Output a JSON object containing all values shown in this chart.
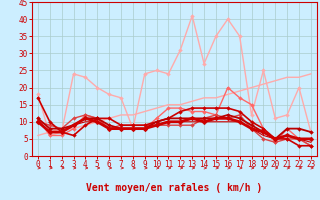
{
  "title": "",
  "xlabel": "Vent moyen/en rafales ( km/h )",
  "xlim": [
    -0.5,
    23.5
  ],
  "ylim": [
    0,
    45
  ],
  "yticks": [
    0,
    5,
    10,
    15,
    20,
    25,
    30,
    35,
    40,
    45
  ],
  "xticks": [
    0,
    1,
    2,
    3,
    4,
    5,
    6,
    7,
    8,
    9,
    10,
    11,
    12,
    13,
    14,
    15,
    16,
    17,
    18,
    19,
    20,
    21,
    22,
    23
  ],
  "background_color": "#cceeff",
  "grid_color": "#aacccc",
  "axis_color": "#cc0000",
  "series": [
    {
      "x": [
        0,
        1,
        2,
        3,
        4,
        5,
        6,
        7,
        8,
        9,
        10,
        11,
        12,
        13,
        14,
        15,
        16,
        17,
        18,
        19,
        20,
        21,
        22,
        23
      ],
      "y": [
        18,
        6,
        7,
        24,
        23,
        20,
        18,
        17,
        8,
        24,
        25,
        24,
        31,
        41,
        27,
        35,
        40,
        35,
        12,
        25,
        11,
        12,
        20,
        7
      ],
      "color": "#ffaaaa",
      "lw": 1.0,
      "marker": "D",
      "ms": 2.0,
      "zorder": 2
    },
    {
      "x": [
        0,
        1,
        2,
        3,
        4,
        5,
        6,
        7,
        8,
        9,
        10,
        11,
        12,
        13,
        14,
        15,
        16,
        17,
        18,
        19,
        20,
        21,
        22,
        23
      ],
      "y": [
        6,
        7,
        8,
        8,
        9,
        10,
        11,
        12,
        12,
        13,
        14,
        15,
        15,
        16,
        17,
        17,
        18,
        19,
        20,
        21,
        22,
        23,
        23,
        24
      ],
      "color": "#ffaaaa",
      "lw": 1.0,
      "marker": null,
      "ms": 0,
      "zorder": 2
    },
    {
      "x": [
        0,
        1,
        2,
        3,
        4,
        5,
        6,
        7,
        8,
        9,
        10,
        11,
        12,
        13,
        14,
        15,
        16,
        17,
        18,
        19,
        20,
        21,
        22,
        23
      ],
      "y": [
        11,
        6,
        6,
        8,
        12,
        11,
        8,
        8,
        8,
        8,
        11,
        14,
        14,
        13,
        13,
        12,
        20,
        17,
        15,
        8,
        4,
        8,
        5,
        3
      ],
      "color": "#ff6666",
      "lw": 1.0,
      "marker": "D",
      "ms": 2.0,
      "zorder": 3
    },
    {
      "x": [
        0,
        1,
        2,
        3,
        4,
        5,
        6,
        7,
        8,
        9,
        10,
        11,
        12,
        13,
        14,
        15,
        16,
        17,
        18,
        19,
        20,
        21,
        22,
        23
      ],
      "y": [
        10,
        9,
        8,
        11,
        12,
        11,
        8,
        9,
        9,
        9,
        9,
        9,
        9,
        9,
        11,
        12,
        11,
        12,
        8,
        5,
        4,
        5,
        5,
        3
      ],
      "color": "#dd4444",
      "lw": 1.0,
      "marker": "D",
      "ms": 2.0,
      "zorder": 3
    },
    {
      "x": [
        0,
        1,
        2,
        3,
        4,
        5,
        6,
        7,
        8,
        9,
        10,
        11,
        12,
        13,
        14,
        15,
        16,
        17,
        18,
        19,
        20,
        21,
        22,
        23
      ],
      "y": [
        17,
        10,
        7,
        6,
        9,
        11,
        11,
        9,
        9,
        9,
        10,
        11,
        13,
        14,
        14,
        14,
        14,
        13,
        10,
        8,
        5,
        5,
        3,
        3
      ],
      "color": "#cc0000",
      "lw": 1.2,
      "marker": "D",
      "ms": 2.0,
      "zorder": 4
    },
    {
      "x": [
        0,
        1,
        2,
        3,
        4,
        5,
        6,
        7,
        8,
        9,
        10,
        11,
        12,
        13,
        14,
        15,
        16,
        17,
        18,
        19,
        20,
        21,
        22,
        23
      ],
      "y": [
        11,
        8,
        8,
        9,
        11,
        11,
        9,
        8,
        8,
        8,
        10,
        11,
        11,
        11,
        11,
        11,
        12,
        11,
        9,
        7,
        5,
        8,
        8,
        7
      ],
      "color": "#bb0000",
      "lw": 1.3,
      "marker": "D",
      "ms": 2.0,
      "zorder": 4
    },
    {
      "x": [
        0,
        1,
        2,
        3,
        4,
        5,
        6,
        7,
        8,
        9,
        10,
        11,
        12,
        13,
        14,
        15,
        16,
        17,
        18,
        19,
        20,
        21,
        22,
        23
      ],
      "y": [
        10,
        7,
        7,
        9,
        10,
        10,
        8,
        8,
        8,
        8,
        9,
        10,
        10,
        10,
        10,
        10,
        10,
        10,
        8,
        6,
        5,
        6,
        5,
        4
      ],
      "color": "#cc0000",
      "lw": 0.8,
      "marker": null,
      "ms": 0,
      "zorder": 4
    },
    {
      "x": [
        0,
        1,
        2,
        3,
        4,
        5,
        6,
        7,
        8,
        9,
        10,
        11,
        12,
        13,
        14,
        15,
        16,
        17,
        18,
        19,
        20,
        21,
        22,
        23
      ],
      "y": [
        10,
        7,
        7,
        9,
        11,
        10,
        8,
        8,
        8,
        8,
        9,
        10,
        10,
        11,
        10,
        11,
        11,
        10,
        8,
        7,
        5,
        6,
        5,
        5
      ],
      "color": "#cc0000",
      "lw": 2.0,
      "marker": "D",
      "ms": 2.5,
      "zorder": 5
    }
  ],
  "xlabel_color": "#cc0000",
  "xlabel_fontsize": 7,
  "tick_color": "#cc0000",
  "tick_fontsize": 5.5
}
